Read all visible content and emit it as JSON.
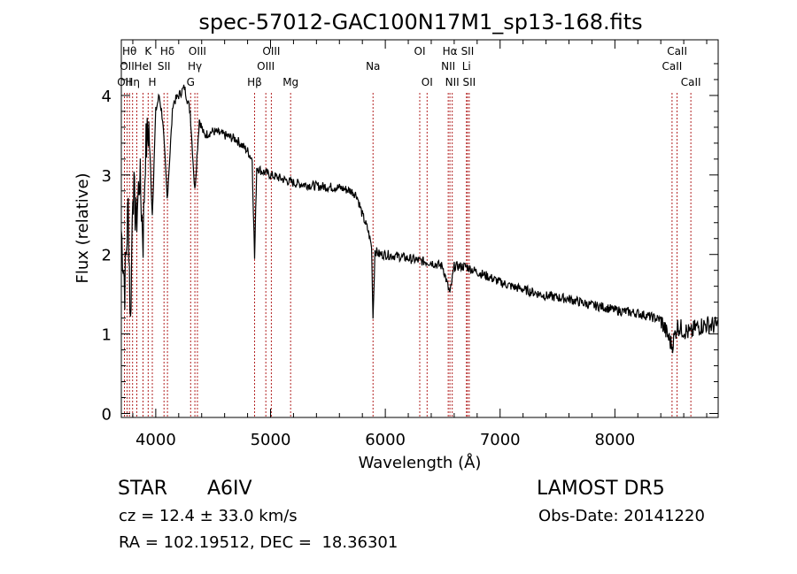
{
  "chart_data": {
    "type": "line",
    "title": "spec-57012-GAC100N17M1_sp13-168.fits",
    "xlabel": "Wavelength (Å)",
    "ylabel": "Flux (relative)",
    "xlim": [
      3700,
      8900
    ],
    "ylim": [
      -0.05,
      4.7
    ],
    "xticks": [
      4000,
      5000,
      6000,
      7000,
      8000
    ],
    "xtick_labels": [
      "4000",
      "5000",
      "6000",
      "7000",
      "8000"
    ],
    "yticks": [
      0,
      1,
      2,
      3,
      4
    ],
    "ytick_labels": [
      "0",
      "1",
      "2",
      "3",
      "4"
    ],
    "grid": false,
    "line_color": "#000000",
    "marker_color": "#b22222",
    "series": [
      {
        "x": [
          3700,
          3730,
          3760,
          3780,
          3800,
          3830,
          3860,
          3890,
          3910,
          3940,
          3970,
          4000,
          4030,
          4060,
          4100,
          4150,
          4200,
          4250,
          4300,
          4340,
          4380,
          4420,
          4500,
          4600,
          4700,
          4800,
          4840,
          4861,
          4880,
          4920,
          5000,
          5100,
          5200,
          5300,
          5400,
          5500,
          5600,
          5700,
          5750,
          5800,
          5850,
          5880,
          5893,
          5910,
          5950,
          6000,
          6100,
          6200,
          6300,
          6400,
          6500,
          6563,
          6600,
          6700,
          6800,
          6900,
          7000,
          7100,
          7200,
          7300,
          7400,
          7500,
          7600,
          7700,
          7800,
          7900,
          8000,
          8100,
          8200,
          8300,
          8400,
          8498,
          8542,
          8600,
          8662,
          8700,
          8800,
          8900
        ],
        "y": [
          2.3,
          1.6,
          2.6,
          1.1,
          2.9,
          2.4,
          3.0,
          2.2,
          3.3,
          3.6,
          2.5,
          3.8,
          4.0,
          3.7,
          2.7,
          3.9,
          4.0,
          4.1,
          3.8,
          2.8,
          3.7,
          3.5,
          3.55,
          3.5,
          3.45,
          3.3,
          3.2,
          1.95,
          3.1,
          3.05,
          3.0,
          2.95,
          2.9,
          2.88,
          2.86,
          2.85,
          2.84,
          2.8,
          2.75,
          2.5,
          2.3,
          2.1,
          1.2,
          2.05,
          2.0,
          2.0,
          1.98,
          1.95,
          1.92,
          1.9,
          1.85,
          1.5,
          1.85,
          1.85,
          1.78,
          1.72,
          1.65,
          1.6,
          1.56,
          1.52,
          1.48,
          1.46,
          1.44,
          1.4,
          1.36,
          1.34,
          1.3,
          1.28,
          1.26,
          1.22,
          1.18,
          0.85,
          1.1,
          1.05,
          1.0,
          1.08,
          1.12,
          1.1
        ]
      }
    ],
    "lines": [
      {
        "wl": 3727,
        "label": "OII",
        "row": 3
      },
      {
        "wl": 3750,
        "label": "OII",
        "row": 2
      },
      {
        "wl": 3771,
        "label": "Hθ",
        "row": 1
      },
      {
        "wl": 3798,
        "label": "Hη",
        "row": 3
      },
      {
        "wl": 3835,
        "label": "",
        "row": 0
      },
      {
        "wl": 3889,
        "label": "HeI",
        "row": 2
      },
      {
        "wl": 3934,
        "label": "K",
        "row": 1
      },
      {
        "wl": 3970,
        "label": "H",
        "row": 3
      },
      {
        "wl": 4072,
        "label": "SII",
        "row": 2
      },
      {
        "wl": 4102,
        "label": "Hδ",
        "row": 1
      },
      {
        "wl": 4304,
        "label": "G",
        "row": 3
      },
      {
        "wl": 4341,
        "label": "Hγ",
        "row": 2
      },
      {
        "wl": 4363,
        "label": "OIII",
        "row": 1
      },
      {
        "wl": 4861,
        "label": "Hβ",
        "row": 3
      },
      {
        "wl": 4959,
        "label": "OIII",
        "row": 2
      },
      {
        "wl": 5007,
        "label": "OIII",
        "row": 1
      },
      {
        "wl": 5175,
        "label": "Mg",
        "row": 3
      },
      {
        "wl": 5893,
        "label": "Na",
        "row": 2
      },
      {
        "wl": 6300,
        "label": "OI",
        "row": 1
      },
      {
        "wl": 6364,
        "label": "OI",
        "row": 3
      },
      {
        "wl": 6548,
        "label": "NII",
        "row": 2
      },
      {
        "wl": 6563,
        "label": "Hα",
        "row": 1
      },
      {
        "wl": 6583,
        "label": "NII",
        "row": 3
      },
      {
        "wl": 6707,
        "label": "Li",
        "row": 2
      },
      {
        "wl": 6716,
        "label": "SII",
        "row": 1
      },
      {
        "wl": 6731,
        "label": "SII",
        "row": 3
      },
      {
        "wl": 8498,
        "label": "CaII",
        "row": 2
      },
      {
        "wl": 8542,
        "label": "CaII",
        "row": 1
      },
      {
        "wl": 8662,
        "label": "CaII",
        "row": 3
      }
    ]
  },
  "info": {
    "class_label": "STAR",
    "subclass": "A6IV",
    "survey": "LAMOST DR5",
    "velocity": "cz = 12.4 ± 33.0 km/s",
    "obs_date": "Obs-Date: 20141220",
    "coords": "RA = 102.19512, DEC =  18.36301"
  }
}
